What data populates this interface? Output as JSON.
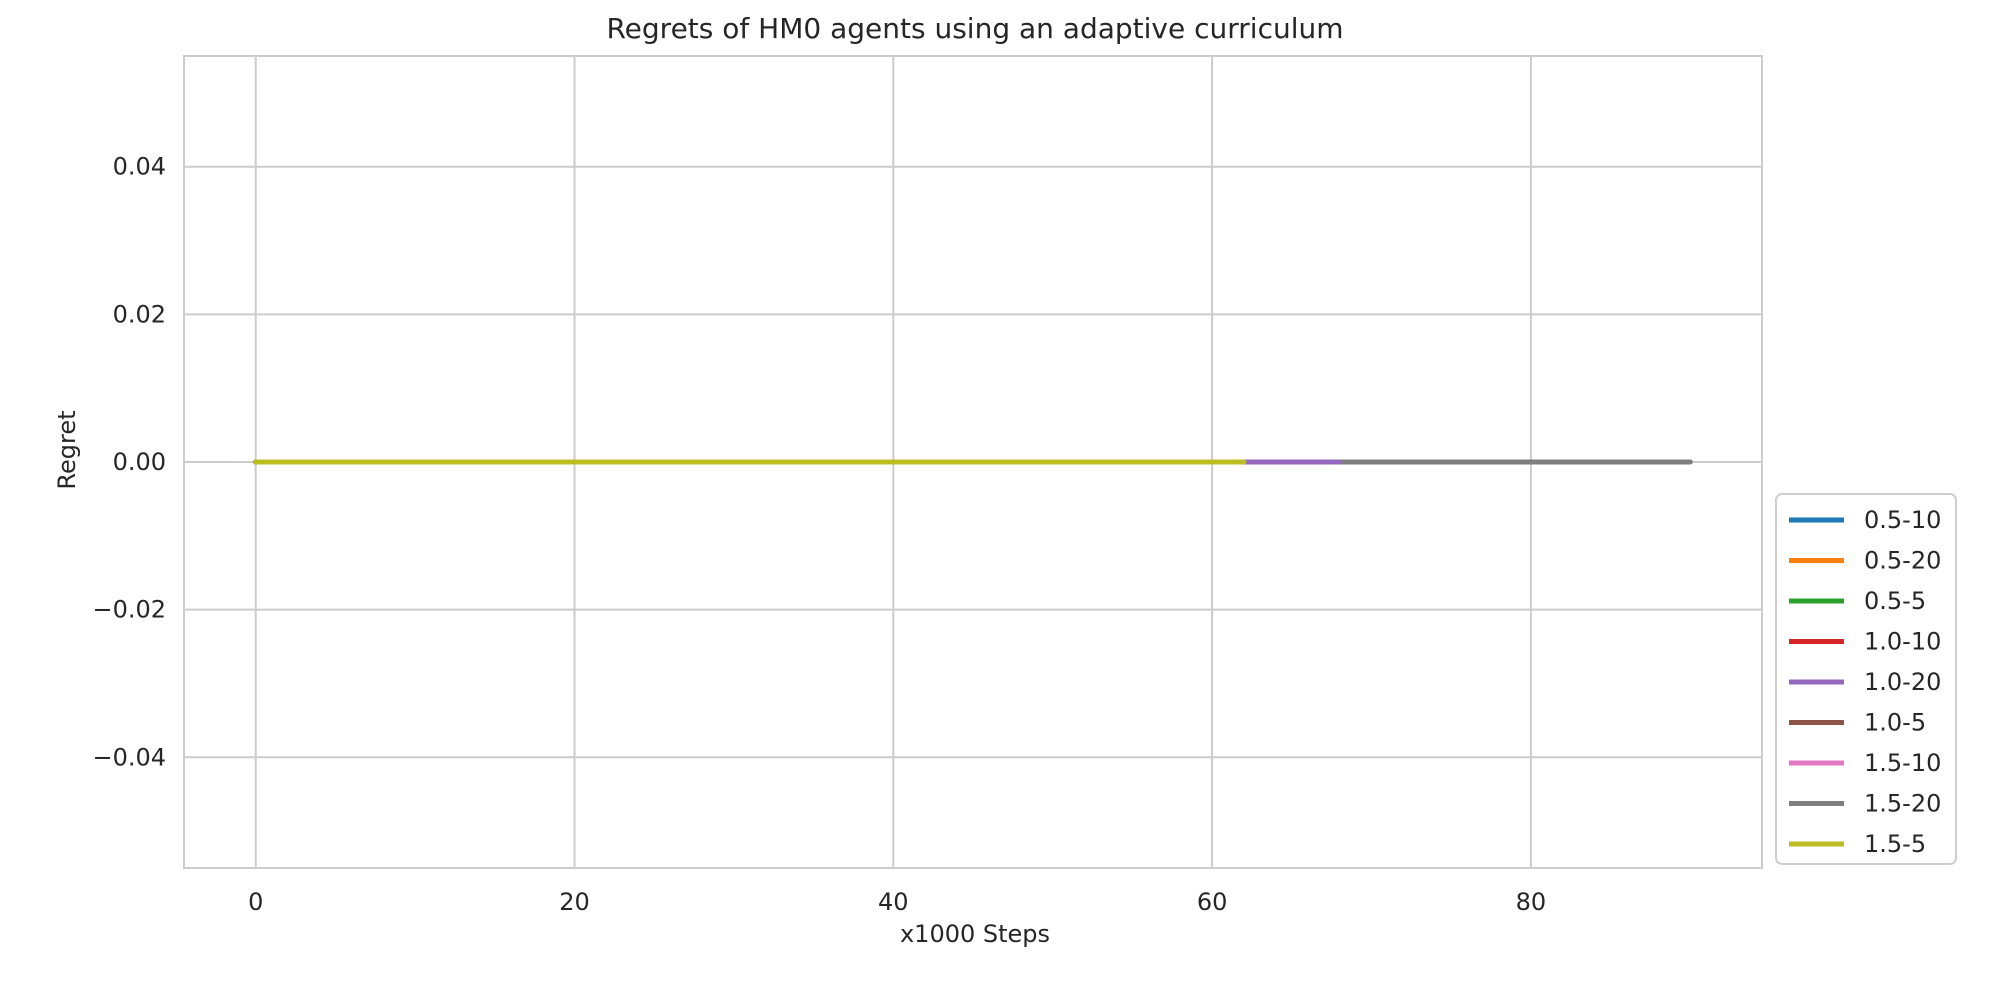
{
  "chart_data": {
    "type": "line",
    "title": "Regrets of HM0 agents using an adaptive curriculum",
    "xlabel": "x1000 Steps",
    "ylabel": "Regret",
    "xlim": [
      -4.5,
      94.5
    ],
    "ylim": [
      -0.055,
      0.055
    ],
    "xticks": [
      0,
      20,
      40,
      60,
      80
    ],
    "yticks": [
      0.04,
      0.02,
      0.0,
      -0.02,
      -0.04
    ],
    "ytick_labels": [
      "0.04",
      "0.02",
      "0.00",
      "−0.02",
      "−0.04"
    ],
    "grid": true,
    "legend_position": "outside-right-lower",
    "series": [
      {
        "name": "0.5-10",
        "color": "#1f77b4",
        "x": [
          0,
          62
        ],
        "y": [
          0,
          0
        ]
      },
      {
        "name": "0.5-20",
        "color": "#ff7f0e",
        "x": [
          0,
          62
        ],
        "y": [
          0,
          0
        ]
      },
      {
        "name": "0.5-5",
        "color": "#2ca02c",
        "x": [
          0,
          62
        ],
        "y": [
          0,
          0
        ]
      },
      {
        "name": "1.0-10",
        "color": "#d62728",
        "x": [
          0,
          62
        ],
        "y": [
          0,
          0
        ]
      },
      {
        "name": "1.0-20",
        "color": "#9467bd",
        "x": [
          0,
          68
        ],
        "y": [
          0,
          0
        ]
      },
      {
        "name": "1.0-5",
        "color": "#8c564b",
        "x": [
          0,
          62
        ],
        "y": [
          0,
          0
        ]
      },
      {
        "name": "1.5-10",
        "color": "#e377c2",
        "x": [
          0,
          62
        ],
        "y": [
          0,
          0
        ]
      },
      {
        "name": "1.5-20",
        "color": "#7f7f7f",
        "x": [
          0,
          90
        ],
        "y": [
          0,
          0
        ]
      },
      {
        "name": "1.5-5",
        "color": "#bcbd22",
        "x": [
          0,
          62
        ],
        "y": [
          0,
          0
        ]
      }
    ]
  }
}
